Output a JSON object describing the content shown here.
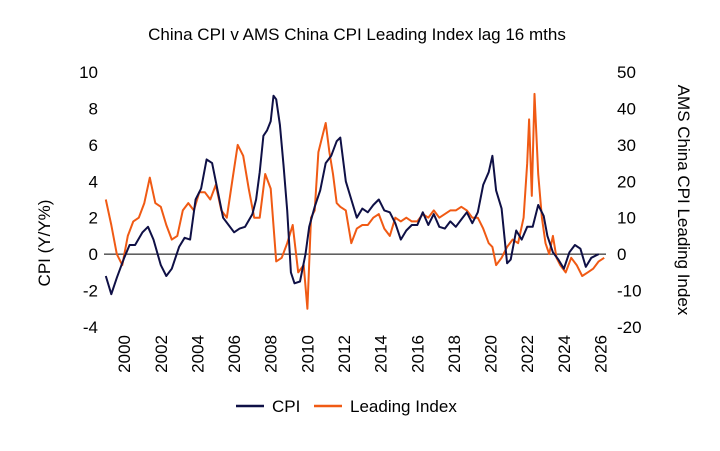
{
  "chart_data": {
    "type": "line",
    "title": "China CPI v AMS China CPI Leading Index lag 16 mths",
    "ylabel_left": "CPI (Y/Y%)",
    "ylabel_right": "AMS China CPI Leading Index",
    "ylim_left": [
      -4,
      10
    ],
    "ylim_right": [
      -20,
      50
    ],
    "xlim": [
      1998.9,
      2026.3
    ],
    "left_ticks": [
      "-4",
      "-2",
      "0",
      "2",
      "4",
      "6",
      "8",
      "10"
    ],
    "right_ticks": [
      "-20",
      "-10",
      "0",
      "10",
      "20",
      "30",
      "40",
      "50"
    ],
    "x_ticks": [
      "2000",
      "2002",
      "2004",
      "2006",
      "2008",
      "2010",
      "2012",
      "2014",
      "2016",
      "2018",
      "2020",
      "2022",
      "2024",
      "2026"
    ],
    "legend_position": "bottom",
    "series": [
      {
        "name": "CPI",
        "axis": "left",
        "color": "#0f1046",
        "x": [
          1999.0,
          1999.3,
          1999.6,
          2000.0,
          2000.3,
          2000.6,
          2001.0,
          2001.3,
          2001.6,
          2002.0,
          2002.3,
          2002.6,
          2003.0,
          2003.3,
          2003.6,
          2003.9,
          2004.2,
          2004.5,
          2004.8,
          2005.1,
          2005.4,
          2005.7,
          2006.0,
          2006.3,
          2006.6,
          2007.0,
          2007.2,
          2007.4,
          2007.6,
          2007.8,
          2008.0,
          2008.15,
          2008.3,
          2008.5,
          2008.7,
          2008.9,
          2009.1,
          2009.3,
          2009.6,
          2009.9,
          2010.1,
          2010.4,
          2010.7,
          2011.0,
          2011.3,
          2011.6,
          2011.8,
          2012.1,
          2012.4,
          2012.7,
          2013.0,
          2013.3,
          2013.6,
          2013.9,
          2014.2,
          2014.5,
          2014.8,
          2015.1,
          2015.4,
          2015.7,
          2016.0,
          2016.3,
          2016.6,
          2016.9,
          2017.2,
          2017.5,
          2017.8,
          2018.1,
          2018.4,
          2018.7,
          2019.0,
          2019.3,
          2019.6,
          2019.9,
          2020.1,
          2020.3,
          2020.6,
          2020.9,
          2021.1,
          2021.4,
          2021.7,
          2022.0,
          2022.3,
          2022.6,
          2022.9,
          2023.1,
          2023.4,
          2023.7,
          2024.0,
          2024.3,
          2024.6,
          2024.9,
          2025.2,
          2025.5,
          2025.9
        ],
        "values": [
          -1.2,
          -2.2,
          -1.3,
          -0.2,
          0.5,
          0.5,
          1.2,
          1.5,
          0.8,
          -0.6,
          -1.2,
          -0.8,
          0.4,
          0.9,
          0.8,
          3.0,
          3.6,
          5.2,
          5.0,
          3.5,
          2.0,
          1.6,
          1.2,
          1.4,
          1.5,
          2.2,
          3.0,
          4.5,
          6.5,
          6.8,
          7.3,
          8.7,
          8.5,
          7.1,
          4.9,
          2.4,
          -1.0,
          -1.6,
          -1.5,
          0.0,
          1.5,
          2.6,
          3.5,
          5.0,
          5.4,
          6.2,
          6.4,
          4.0,
          3.0,
          2.0,
          2.5,
          2.3,
          2.7,
          3.0,
          2.4,
          2.3,
          1.7,
          0.8,
          1.3,
          1.6,
          1.6,
          2.3,
          1.6,
          2.2,
          1.5,
          1.4,
          1.8,
          1.5,
          1.9,
          2.3,
          1.7,
          2.3,
          3.8,
          4.5,
          5.4,
          3.5,
          2.5,
          -0.5,
          -0.3,
          1.3,
          0.8,
          1.5,
          1.5,
          2.7,
          2.1,
          1.0,
          0.1,
          -0.3,
          -0.8,
          0.1,
          0.5,
          0.3,
          -0.7,
          -0.2,
          0.0
        ]
      },
      {
        "name": "Leading Index",
        "axis": "right",
        "color": "#f05a14",
        "x": [
          1999.0,
          1999.3,
          1999.6,
          1999.9,
          2000.2,
          2000.5,
          2000.8,
          2001.1,
          2001.4,
          2001.7,
          2002.0,
          2002.3,
          2002.6,
          2002.9,
          2003.2,
          2003.5,
          2003.8,
          2004.1,
          2004.4,
          2004.7,
          2005.0,
          2005.3,
          2005.6,
          2005.9,
          2006.2,
          2006.5,
          2006.8,
          2007.1,
          2007.4,
          2007.7,
          2008.0,
          2008.3,
          2008.6,
          2008.9,
          2009.2,
          2009.5,
          2009.8,
          2010.0,
          2010.2,
          2010.4,
          2010.6,
          2010.8,
          2011.0,
          2011.2,
          2011.4,
          2011.6,
          2011.8,
          2012.1,
          2012.4,
          2012.7,
          2013.0,
          2013.3,
          2013.6,
          2013.9,
          2014.2,
          2014.5,
          2014.8,
          2015.1,
          2015.4,
          2015.7,
          2016.0,
          2016.3,
          2016.6,
          2016.9,
          2017.2,
          2017.5,
          2017.8,
          2018.1,
          2018.4,
          2018.7,
          2019.0,
          2019.3,
          2019.6,
          2019.9,
          2020.1,
          2020.3,
          2020.6,
          2020.9,
          2021.2,
          2021.5,
          2021.8,
          2022.0,
          2022.1,
          2022.25,
          2022.4,
          2022.6,
          2022.8,
          2023.0,
          2023.2,
          2023.4,
          2023.6,
          2023.8,
          2024.1,
          2024.4,
          2024.7,
          2025.0,
          2025.3,
          2025.6,
          2025.9,
          2026.2
        ],
        "values": [
          15,
          8,
          0,
          -3,
          5,
          9,
          10,
          14,
          21,
          14,
          13,
          8,
          4,
          5,
          12,
          14,
          12,
          17,
          17,
          15,
          19,
          12,
          10,
          20,
          30,
          27,
          18,
          10,
          10,
          22,
          18,
          -2,
          -1,
          3,
          8,
          -5,
          -3,
          -15,
          10,
          12,
          28,
          32,
          36,
          28,
          22,
          14,
          13,
          12,
          3,
          7,
          8,
          8,
          10,
          11,
          7,
          5,
          10,
          9,
          10,
          9,
          9,
          11,
          10,
          12,
          10,
          11,
          12,
          12,
          13,
          12,
          10,
          10,
          7,
          3,
          2,
          -3,
          -1,
          2,
          4,
          3,
          10,
          25,
          37,
          16,
          44,
          22,
          10,
          3,
          0,
          5,
          -1,
          -3,
          -5,
          -1,
          -3,
          -6,
          -5,
          -4,
          -2,
          -1
        ]
      }
    ]
  }
}
